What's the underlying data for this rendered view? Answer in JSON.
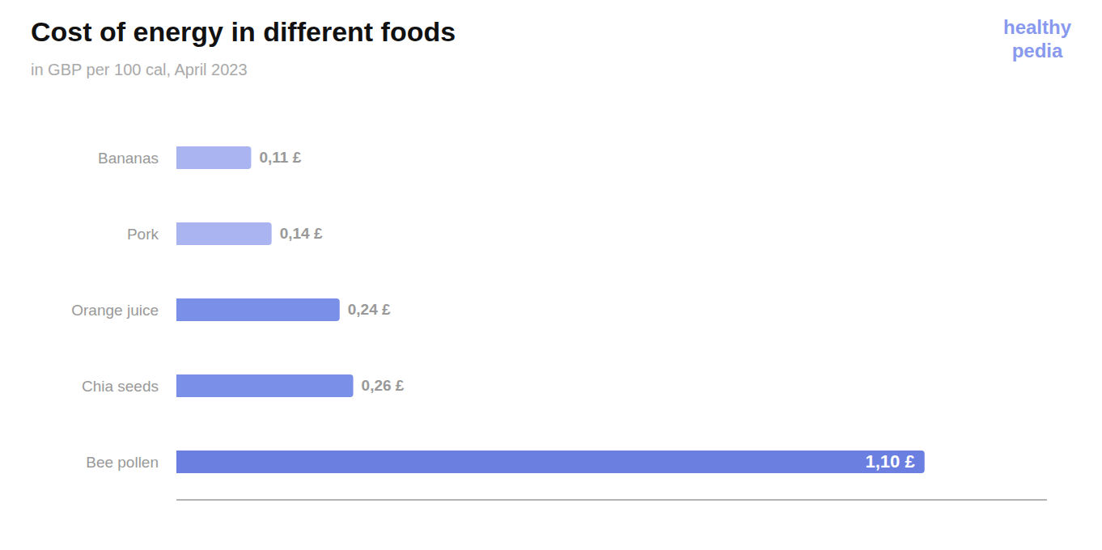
{
  "chart_data": {
    "type": "bar",
    "orientation": "horizontal",
    "title": "Cost of energy in different foods",
    "subtitle": "in GBP per 100 cal, April 2023",
    "categories": [
      "Bananas",
      "Pork",
      "Orange juice",
      "Chia seeds",
      "Bee pollen"
    ],
    "values": [
      0.11,
      0.14,
      0.24,
      0.26,
      1.1
    ],
    "value_labels": [
      "0,11 £",
      "0,14 £",
      "0,24 £",
      "0,26 £",
      "1,10 £"
    ],
    "colors": [
      "#aab4f0",
      "#aab4f0",
      "#7a8fe8",
      "#7a8fe8",
      "#6b7fe0"
    ],
    "xlim": [
      0,
      1.28
    ],
    "data_labels": true,
    "grid": false,
    "tick_labels": "y",
    "annotations": [
      {
        "text": "healthy\npedia",
        "color": "#8899ee"
      }
    ]
  }
}
